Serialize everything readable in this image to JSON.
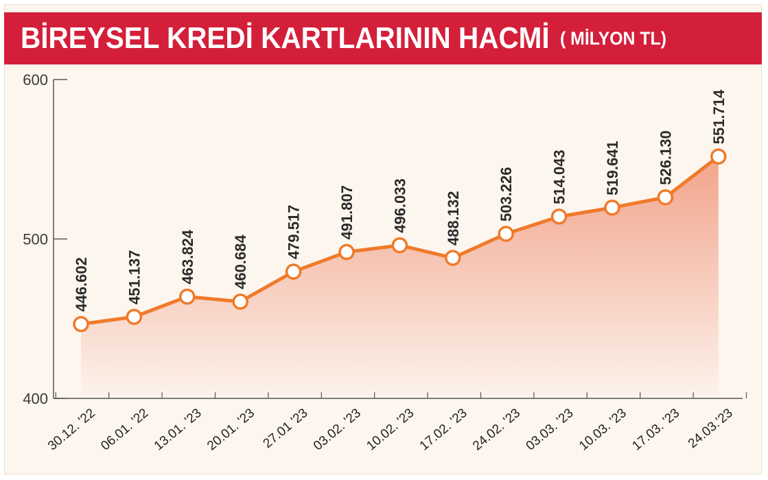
{
  "header": {
    "title": "BİREYSEL KREDİ KARTLARININ HACMİ",
    "unit": "( MİLYON TL)"
  },
  "colors": {
    "banner": "#d41f3a",
    "line": "#f07a2a",
    "area_top": "#f2a48c",
    "area_bottom": "#fdf3ec",
    "background": "#fdf6ee"
  },
  "chart_data": {
    "type": "area",
    "title": "BİREYSEL KREDİ KARTLARININ HACMİ",
    "subtitle": "( MİLYON TL)",
    "xlabel": "",
    "ylabel": "",
    "ylim": [
      400,
      600
    ],
    "yticks": [
      "400",
      "500",
      "600"
    ],
    "grid": false,
    "categories": [
      "30.12. '22",
      "06.01. '22",
      "13.01. '23",
      "20.01. '23",
      "27.01 '23",
      "03.02. '23",
      "10.02. '23",
      "17.02. '23",
      "24.02. '23",
      "03.03. '23",
      "10.03. '23",
      "17.03. '23",
      "24.03.'23"
    ],
    "values": [
      446.602,
      451.137,
      463.824,
      460.684,
      479.517,
      491.807,
      496.033,
      488.132,
      503.226,
      514.043,
      519.641,
      526.13,
      551.714
    ],
    "value_labels": [
      "446.602",
      "451.137",
      "463.824",
      "460.684",
      "479.517",
      "491.807",
      "496.033",
      "488.132",
      "503.226",
      "514.043",
      "519.641",
      "526.130",
      "551.714"
    ]
  }
}
